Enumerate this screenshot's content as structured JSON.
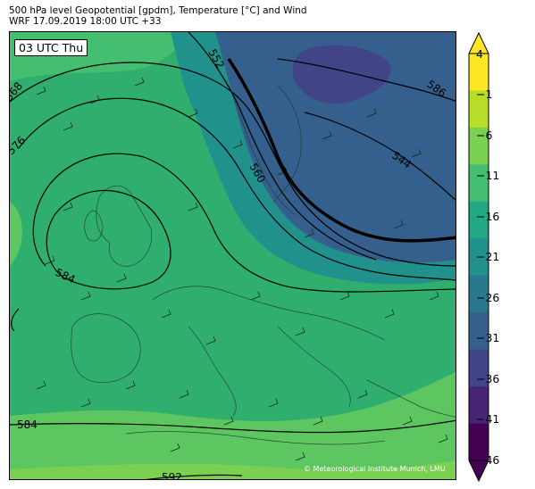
{
  "header": {
    "line1": "500 hPa level Geopotential [gpdm], Temperature [°C] and Wind",
    "line2": "WRF 17.09.2019 18:00 UTC +33"
  },
  "map": {
    "time_label": "03 UTC Thu",
    "copyright": "© Meteorological Institute Munich, LMU",
    "contour_labels": [
      "552",
      "586",
      "568",
      "576",
      "560",
      "544",
      "584",
      "584",
      "592"
    ]
  },
  "colorbar": {
    "ticks": [
      "4",
      "−1",
      "−6",
      "−11",
      "−16",
      "−21",
      "−26",
      "−31",
      "−36",
      "−41",
      "−46"
    ],
    "colors": [
      "#fde725",
      "#b8de29",
      "#7ad151",
      "#44bf70",
      "#22a884",
      "#21918c",
      "#2a788e",
      "#355f8d",
      "#414487",
      "#482475",
      "#440154"
    ]
  }
}
